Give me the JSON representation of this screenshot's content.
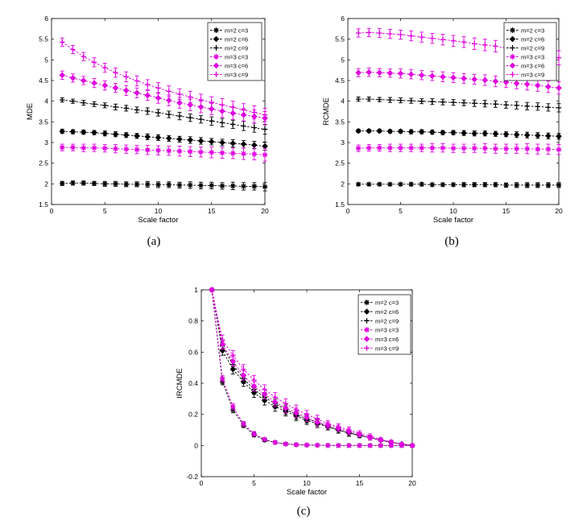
{
  "chart_data": [
    {
      "id": "a",
      "type": "line",
      "panel_label": "(a)",
      "xlabel": "Scale factor",
      "ylabel": "MDE",
      "xlim": [
        0,
        20
      ],
      "ylim": [
        1.5,
        6
      ],
      "xticks": [
        0,
        5,
        10,
        15,
        20
      ],
      "yticks": [
        1.5,
        2,
        2.5,
        3,
        3.5,
        4,
        4.5,
        5,
        5.5,
        6
      ],
      "legend_position": "top-right",
      "x": [
        1,
        2,
        3,
        4,
        5,
        6,
        7,
        8,
        9,
        10,
        11,
        12,
        13,
        14,
        15,
        16,
        17,
        18,
        19,
        20
      ],
      "series": [
        {
          "name": "m=2 c=3",
          "color": "#000000",
          "marker": "star",
          "values": [
            2.01,
            2.02,
            2.02,
            2.01,
            2.0,
            2.0,
            1.99,
            1.99,
            1.99,
            1.98,
            1.98,
            1.97,
            1.97,
            1.96,
            1.96,
            1.95,
            1.95,
            1.94,
            1.94,
            1.93
          ],
          "errors": [
            0.05,
            0.05,
            0.05,
            0.05,
            0.06,
            0.06,
            0.06,
            0.06,
            0.07,
            0.07,
            0.07,
            0.07,
            0.08,
            0.08,
            0.08,
            0.08,
            0.09,
            0.09,
            0.09,
            0.1
          ]
        },
        {
          "name": "m=2 c=6",
          "color": "#000000",
          "marker": "diamond",
          "values": [
            3.27,
            3.26,
            3.25,
            3.24,
            3.22,
            3.2,
            3.18,
            3.16,
            3.14,
            3.12,
            3.1,
            3.08,
            3.06,
            3.04,
            3.02,
            3.0,
            2.98,
            2.96,
            2.94,
            2.91
          ],
          "errors": [
            0.05,
            0.05,
            0.05,
            0.05,
            0.06,
            0.06,
            0.06,
            0.06,
            0.07,
            0.07,
            0.07,
            0.07,
            0.08,
            0.08,
            0.08,
            0.08,
            0.09,
            0.09,
            0.09,
            0.1
          ]
        },
        {
          "name": "m=2 c=9",
          "color": "#000000",
          "marker": "plus",
          "values": [
            4.03,
            4.0,
            3.96,
            3.93,
            3.9,
            3.86,
            3.83,
            3.79,
            3.76,
            3.72,
            3.68,
            3.64,
            3.6,
            3.56,
            3.52,
            3.48,
            3.44,
            3.4,
            3.36,
            3.32
          ],
          "errors": [
            0.05,
            0.05,
            0.06,
            0.06,
            0.06,
            0.07,
            0.07,
            0.07,
            0.08,
            0.08,
            0.08,
            0.09,
            0.09,
            0.09,
            0.1,
            0.1,
            0.1,
            0.11,
            0.11,
            0.12
          ]
        },
        {
          "name": "m=3 c=3",
          "color": "#e000e0",
          "marker": "star",
          "values": [
            2.88,
            2.88,
            2.87,
            2.87,
            2.86,
            2.85,
            2.84,
            2.83,
            2.82,
            2.81,
            2.8,
            2.79,
            2.78,
            2.77,
            2.76,
            2.75,
            2.74,
            2.73,
            2.72,
            2.7
          ],
          "errors": [
            0.08,
            0.08,
            0.09,
            0.09,
            0.09,
            0.1,
            0.1,
            0.1,
            0.11,
            0.11,
            0.11,
            0.12,
            0.12,
            0.12,
            0.13,
            0.13,
            0.13,
            0.14,
            0.14,
            0.15
          ]
        },
        {
          "name": "m=3 c=6",
          "color": "#e000e0",
          "marker": "diamond",
          "values": [
            4.63,
            4.56,
            4.5,
            4.44,
            4.38,
            4.32,
            4.26,
            4.2,
            4.14,
            4.08,
            4.02,
            3.96,
            3.91,
            3.86,
            3.81,
            3.76,
            3.71,
            3.67,
            3.63,
            3.59
          ],
          "errors": [
            0.1,
            0.1,
            0.1,
            0.11,
            0.11,
            0.11,
            0.12,
            0.12,
            0.12,
            0.13,
            0.13,
            0.13,
            0.14,
            0.14,
            0.14,
            0.15,
            0.15,
            0.15,
            0.16,
            0.16
          ]
        },
        {
          "name": "m=3 c=9",
          "color": "#e000e0",
          "marker": "plus",
          "values": [
            5.43,
            5.25,
            5.08,
            4.94,
            4.81,
            4.69,
            4.59,
            4.49,
            4.4,
            4.32,
            4.24,
            4.17,
            4.1,
            4.03,
            3.97,
            3.91,
            3.85,
            3.79,
            3.73,
            3.67
          ],
          "errors": [
            0.1,
            0.1,
            0.1,
            0.11,
            0.11,
            0.11,
            0.12,
            0.12,
            0.12,
            0.13,
            0.13,
            0.13,
            0.14,
            0.14,
            0.14,
            0.15,
            0.15,
            0.15,
            0.16,
            0.16
          ]
        }
      ]
    },
    {
      "id": "b",
      "type": "line",
      "panel_label": "(b)",
      "xlabel": "Scale factor",
      "ylabel": "RCMDE",
      "xlim": [
        0,
        20
      ],
      "ylim": [
        1.5,
        6
      ],
      "xticks": [
        0,
        5,
        10,
        15,
        20
      ],
      "yticks": [
        1.5,
        2,
        2.5,
        3,
        3.5,
        4,
        4.5,
        5,
        5.5,
        6
      ],
      "legend_position": "top-right",
      "x": [
        1,
        2,
        3,
        4,
        5,
        6,
        7,
        8,
        9,
        10,
        11,
        12,
        13,
        14,
        15,
        16,
        17,
        18,
        19,
        20
      ],
      "series": [
        {
          "name": "m=2 c=3",
          "color": "#000000",
          "marker": "star",
          "values": [
            1.99,
            1.99,
            1.99,
            1.99,
            1.99,
            1.99,
            1.99,
            1.98,
            1.98,
            1.98,
            1.98,
            1.98,
            1.98,
            1.98,
            1.97,
            1.97,
            1.97,
            1.97,
            1.97,
            1.97
          ],
          "errors": [
            0.03,
            0.03,
            0.03,
            0.03,
            0.03,
            0.04,
            0.04,
            0.04,
            0.04,
            0.04,
            0.05,
            0.05,
            0.05,
            0.05,
            0.05,
            0.06,
            0.06,
            0.06,
            0.06,
            0.06
          ]
        },
        {
          "name": "m=2 c=6",
          "color": "#000000",
          "marker": "diamond",
          "values": [
            3.28,
            3.28,
            3.28,
            3.27,
            3.27,
            3.26,
            3.26,
            3.25,
            3.24,
            3.24,
            3.23,
            3.22,
            3.22,
            3.21,
            3.2,
            3.19,
            3.18,
            3.17,
            3.16,
            3.15
          ],
          "errors": [
            0.04,
            0.04,
            0.04,
            0.04,
            0.04,
            0.05,
            0.05,
            0.05,
            0.05,
            0.05,
            0.06,
            0.06,
            0.06,
            0.06,
            0.06,
            0.07,
            0.07,
            0.07,
            0.07,
            0.07
          ]
        },
        {
          "name": "m=2 c=9",
          "color": "#000000",
          "marker": "plus",
          "values": [
            4.05,
            4.05,
            4.04,
            4.03,
            4.02,
            4.01,
            4.0,
            3.99,
            3.98,
            3.97,
            3.96,
            3.95,
            3.94,
            3.93,
            3.91,
            3.9,
            3.88,
            3.87,
            3.85,
            3.84
          ],
          "errors": [
            0.05,
            0.05,
            0.05,
            0.06,
            0.06,
            0.06,
            0.06,
            0.07,
            0.07,
            0.07,
            0.07,
            0.08,
            0.08,
            0.08,
            0.08,
            0.09,
            0.09,
            0.09,
            0.09,
            0.1
          ]
        },
        {
          "name": "m=3 c=3",
          "color": "#e000e0",
          "marker": "star",
          "values": [
            2.86,
            2.87,
            2.87,
            2.87,
            2.87,
            2.87,
            2.87,
            2.87,
            2.87,
            2.86,
            2.86,
            2.86,
            2.86,
            2.85,
            2.85,
            2.85,
            2.85,
            2.84,
            2.84,
            2.83
          ],
          "errors": [
            0.08,
            0.08,
            0.08,
            0.09,
            0.09,
            0.09,
            0.09,
            0.1,
            0.1,
            0.1,
            0.1,
            0.1,
            0.11,
            0.11,
            0.11,
            0.11,
            0.12,
            0.12,
            0.12,
            0.12
          ]
        },
        {
          "name": "m=3 c=6",
          "color": "#e000e0",
          "marker": "diamond",
          "values": [
            4.69,
            4.7,
            4.69,
            4.68,
            4.67,
            4.65,
            4.63,
            4.61,
            4.59,
            4.57,
            4.55,
            4.53,
            4.51,
            4.48,
            4.46,
            4.43,
            4.41,
            4.38,
            4.35,
            4.32
          ],
          "errors": [
            0.1,
            0.1,
            0.1,
            0.1,
            0.11,
            0.11,
            0.11,
            0.11,
            0.12,
            0.12,
            0.12,
            0.12,
            0.13,
            0.13,
            0.13,
            0.13,
            0.14,
            0.14,
            0.14,
            0.15
          ]
        },
        {
          "name": "m=3 c=9",
          "color": "#e000e0",
          "marker": "plus",
          "values": [
            5.65,
            5.66,
            5.65,
            5.63,
            5.61,
            5.58,
            5.55,
            5.52,
            5.49,
            5.46,
            5.43,
            5.39,
            5.36,
            5.33,
            5.29,
            5.25,
            5.22,
            5.18,
            5.14,
            5.05
          ],
          "errors": [
            0.1,
            0.1,
            0.11,
            0.11,
            0.11,
            0.12,
            0.12,
            0.12,
            0.13,
            0.13,
            0.13,
            0.14,
            0.14,
            0.14,
            0.15,
            0.15,
            0.15,
            0.16,
            0.16,
            0.17
          ]
        }
      ]
    },
    {
      "id": "c",
      "type": "line",
      "panel_label": "(c)",
      "xlabel": "Scale factor",
      "ylabel": "IRCMDE",
      "xlim": [
        0,
        20
      ],
      "ylim": [
        -0.2,
        1
      ],
      "xticks": [
        0,
        5,
        10,
        15,
        20
      ],
      "yticks": [
        -0.2,
        0,
        0.2,
        0.4,
        0.6,
        0.8,
        1
      ],
      "legend_position": "top-right",
      "x": [
        1,
        2,
        3,
        4,
        5,
        6,
        7,
        8,
        9,
        10,
        11,
        12,
        13,
        14,
        15,
        16,
        17,
        18,
        19,
        20
      ],
      "series": [
        {
          "name": "m=2 c=3",
          "color": "#000000",
          "marker": "star",
          "values": [
            1.0,
            0.41,
            0.23,
            0.13,
            0.07,
            0.035,
            0.02,
            0.01,
            0.005,
            0.003,
            0.002,
            0.001,
            0.0,
            0.0,
            0.0,
            0.0,
            0.0,
            0.0,
            0.0,
            0.0
          ],
          "errors": [
            0.0,
            0.02,
            0.02,
            0.015,
            0.015,
            0.01,
            0.01,
            0.005,
            0.005,
            0.005,
            0.0,
            0.0,
            0.0,
            0.0,
            0.0,
            0.0,
            0.0,
            0.0,
            0.0,
            0.0
          ]
        },
        {
          "name": "m=2 c=6",
          "color": "#000000",
          "marker": "diamond",
          "values": [
            1.0,
            0.61,
            0.49,
            0.41,
            0.34,
            0.29,
            0.25,
            0.22,
            0.19,
            0.16,
            0.14,
            0.12,
            0.1,
            0.08,
            0.065,
            0.05,
            0.035,
            0.02,
            0.01,
            0.0
          ],
          "errors": [
            0.0,
            0.03,
            0.03,
            0.03,
            0.03,
            0.03,
            0.03,
            0.03,
            0.03,
            0.025,
            0.025,
            0.02,
            0.02,
            0.02,
            0.015,
            0.015,
            0.01,
            0.01,
            0.005,
            0.0
          ]
        },
        {
          "name": "m=2 c=9",
          "color": "#000000",
          "marker": "plus",
          "values": [
            1.0,
            0.64,
            0.52,
            0.43,
            0.36,
            0.31,
            0.27,
            0.23,
            0.2,
            0.17,
            0.15,
            0.12,
            0.1,
            0.08,
            0.065,
            0.05,
            0.035,
            0.02,
            0.01,
            0.0
          ],
          "errors": [
            0.0,
            0.03,
            0.03,
            0.03,
            0.03,
            0.03,
            0.03,
            0.03,
            0.03,
            0.025,
            0.025,
            0.02,
            0.02,
            0.02,
            0.015,
            0.015,
            0.01,
            0.01,
            0.005,
            0.0
          ]
        },
        {
          "name": "m=3 c=3",
          "color": "#e000e0",
          "marker": "star",
          "values": [
            1.0,
            0.43,
            0.25,
            0.14,
            0.075,
            0.04,
            0.02,
            0.01,
            0.005,
            0.003,
            0.002,
            0.001,
            0.0,
            0.0,
            0.0,
            0.0,
            0.0,
            0.0,
            0.0,
            0.0
          ],
          "errors": [
            0.0,
            0.02,
            0.02,
            0.015,
            0.015,
            0.01,
            0.01,
            0.005,
            0.005,
            0.005,
            0.0,
            0.0,
            0.0,
            0.0,
            0.0,
            0.0,
            0.0,
            0.0,
            0.0,
            0.0
          ]
        },
        {
          "name": "m=3 c=6",
          "color": "#e000e0",
          "marker": "diamond",
          "values": [
            1.0,
            0.65,
            0.54,
            0.45,
            0.38,
            0.33,
            0.28,
            0.24,
            0.21,
            0.18,
            0.15,
            0.13,
            0.11,
            0.09,
            0.07,
            0.05,
            0.035,
            0.02,
            0.01,
            0.0
          ],
          "errors": [
            0.0,
            0.03,
            0.03,
            0.03,
            0.03,
            0.03,
            0.03,
            0.03,
            0.03,
            0.025,
            0.025,
            0.02,
            0.02,
            0.02,
            0.015,
            0.015,
            0.01,
            0.01,
            0.005,
            0.0
          ]
        },
        {
          "name": "m=3 c=9",
          "color": "#e000e0",
          "marker": "plus",
          "values": [
            1.0,
            0.68,
            0.58,
            0.49,
            0.42,
            0.36,
            0.31,
            0.27,
            0.23,
            0.2,
            0.17,
            0.14,
            0.12,
            0.1,
            0.08,
            0.06,
            0.04,
            0.025,
            0.01,
            0.0
          ],
          "errors": [
            0.0,
            0.03,
            0.03,
            0.03,
            0.03,
            0.03,
            0.03,
            0.03,
            0.03,
            0.025,
            0.025,
            0.02,
            0.02,
            0.02,
            0.015,
            0.015,
            0.01,
            0.01,
            0.005,
            0.0
          ]
        }
      ]
    }
  ]
}
